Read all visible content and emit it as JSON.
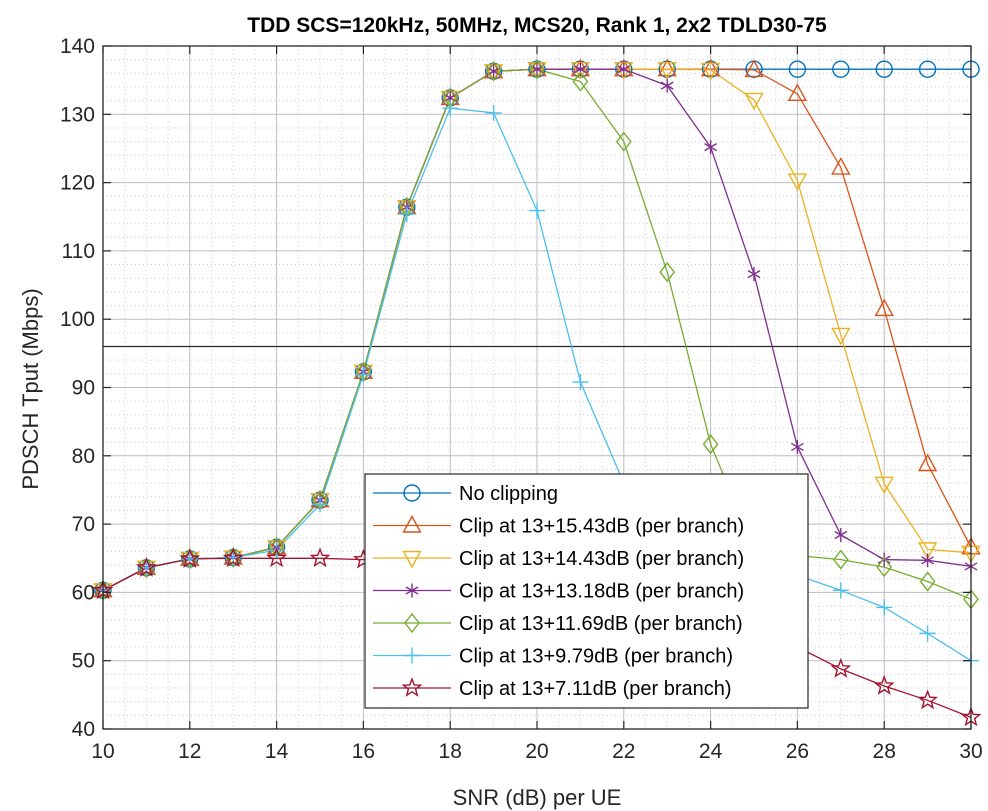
{
  "chart_data": {
    "type": "line",
    "title": "TDD SCS=120kHz, 50MHz, MCS20, Rank 1, 2x2 TDLD30-75",
    "xlabel": "SNR (dB) per UE",
    "ylabel": "PDSCH Tput (Mbps)",
    "xlim": [
      10,
      30
    ],
    "ylim": [
      40,
      140
    ],
    "x_ticks": [
      10,
      12,
      14,
      16,
      18,
      20,
      22,
      24,
      26,
      28,
      30
    ],
    "y_ticks": [
      40,
      50,
      60,
      70,
      80,
      90,
      100,
      110,
      120,
      130,
      140
    ],
    "grid": true,
    "minor_grid": true,
    "legend_position": "bottom-center",
    "reference_line_y": 96,
    "x": [
      10,
      11,
      12,
      13,
      14,
      15,
      16,
      17,
      18,
      19,
      20,
      21,
      22,
      23,
      24,
      25,
      26,
      27,
      28,
      29,
      30
    ],
    "series": [
      {
        "name": "No clipping",
        "color": "#0072BD",
        "marker": "circle",
        "values": [
          60.3,
          63.6,
          64.9,
          65.1,
          66.6,
          73.5,
          92.3,
          116.4,
          132.4,
          136.3,
          136.6,
          136.6,
          136.6,
          136.6,
          136.6,
          136.6,
          136.6,
          136.6,
          136.6,
          136.6,
          136.6
        ]
      },
      {
        "name": "Clip at 13+15.43dB (per branch)",
        "color": "#D95319",
        "marker": "triangle-up",
        "values": [
          60.3,
          63.6,
          64.9,
          65.1,
          66.6,
          73.5,
          92.3,
          116.4,
          132.4,
          136.3,
          136.6,
          136.6,
          136.6,
          136.6,
          136.6,
          136.5,
          133.0,
          122.2,
          101.5,
          78.8,
          66.6
        ]
      },
      {
        "name": "Clip at 13+14.43dB (per branch)",
        "color": "#EDB120",
        "marker": "triangle-down",
        "values": [
          60.3,
          63.6,
          64.9,
          65.1,
          66.6,
          73.5,
          92.3,
          116.4,
          132.4,
          136.3,
          136.6,
          136.6,
          136.6,
          136.6,
          136.5,
          132.1,
          120.3,
          97.7,
          75.9,
          66.3,
          65.8
        ]
      },
      {
        "name": "Clip at 13+13.18dB (per branch)",
        "color": "#7E2F8E",
        "marker": "asterisk",
        "values": [
          60.3,
          63.6,
          64.9,
          65.1,
          66.6,
          73.5,
          92.3,
          116.4,
          132.4,
          136.3,
          136.6,
          136.6,
          136.6,
          134.2,
          125.2,
          106.6,
          81.3,
          68.4,
          64.8,
          64.7,
          63.8
        ]
      },
      {
        "name": "Clip at 13+11.69dB (per branch)",
        "color": "#77AC30",
        "marker": "diamond",
        "values": [
          60.3,
          63.6,
          64.9,
          65.1,
          66.6,
          73.5,
          92.3,
          116.4,
          132.4,
          136.3,
          136.6,
          134.8,
          126.0,
          106.9,
          81.7,
          66.5,
          65.4,
          64.8,
          63.7,
          61.6,
          59.0
        ]
      },
      {
        "name": "Clip at 13+9.79dB (per branch)",
        "color": "#4DBEEE",
        "marker": "plus",
        "values": [
          60.3,
          63.6,
          64.9,
          65.1,
          66.2,
          72.9,
          91.9,
          115.4,
          130.9,
          130.2,
          115.9,
          90.8,
          76.0,
          68.6,
          64.9,
          63.2,
          62.5,
          60.3,
          57.8,
          54.0,
          50.0
        ]
      },
      {
        "name": "Clip at 13+7.11dB (per branch)",
        "color": "#A2142F",
        "marker": "pentagram",
        "values": [
          60.3,
          63.6,
          64.9,
          65.0,
          65.0,
          65.0,
          64.8,
          64.7,
          64.6,
          64.5,
          64.4,
          64.2,
          63.5,
          62.0,
          59.0,
          55.5,
          52.0,
          48.8,
          46.3,
          44.2,
          41.7
        ]
      }
    ]
  }
}
